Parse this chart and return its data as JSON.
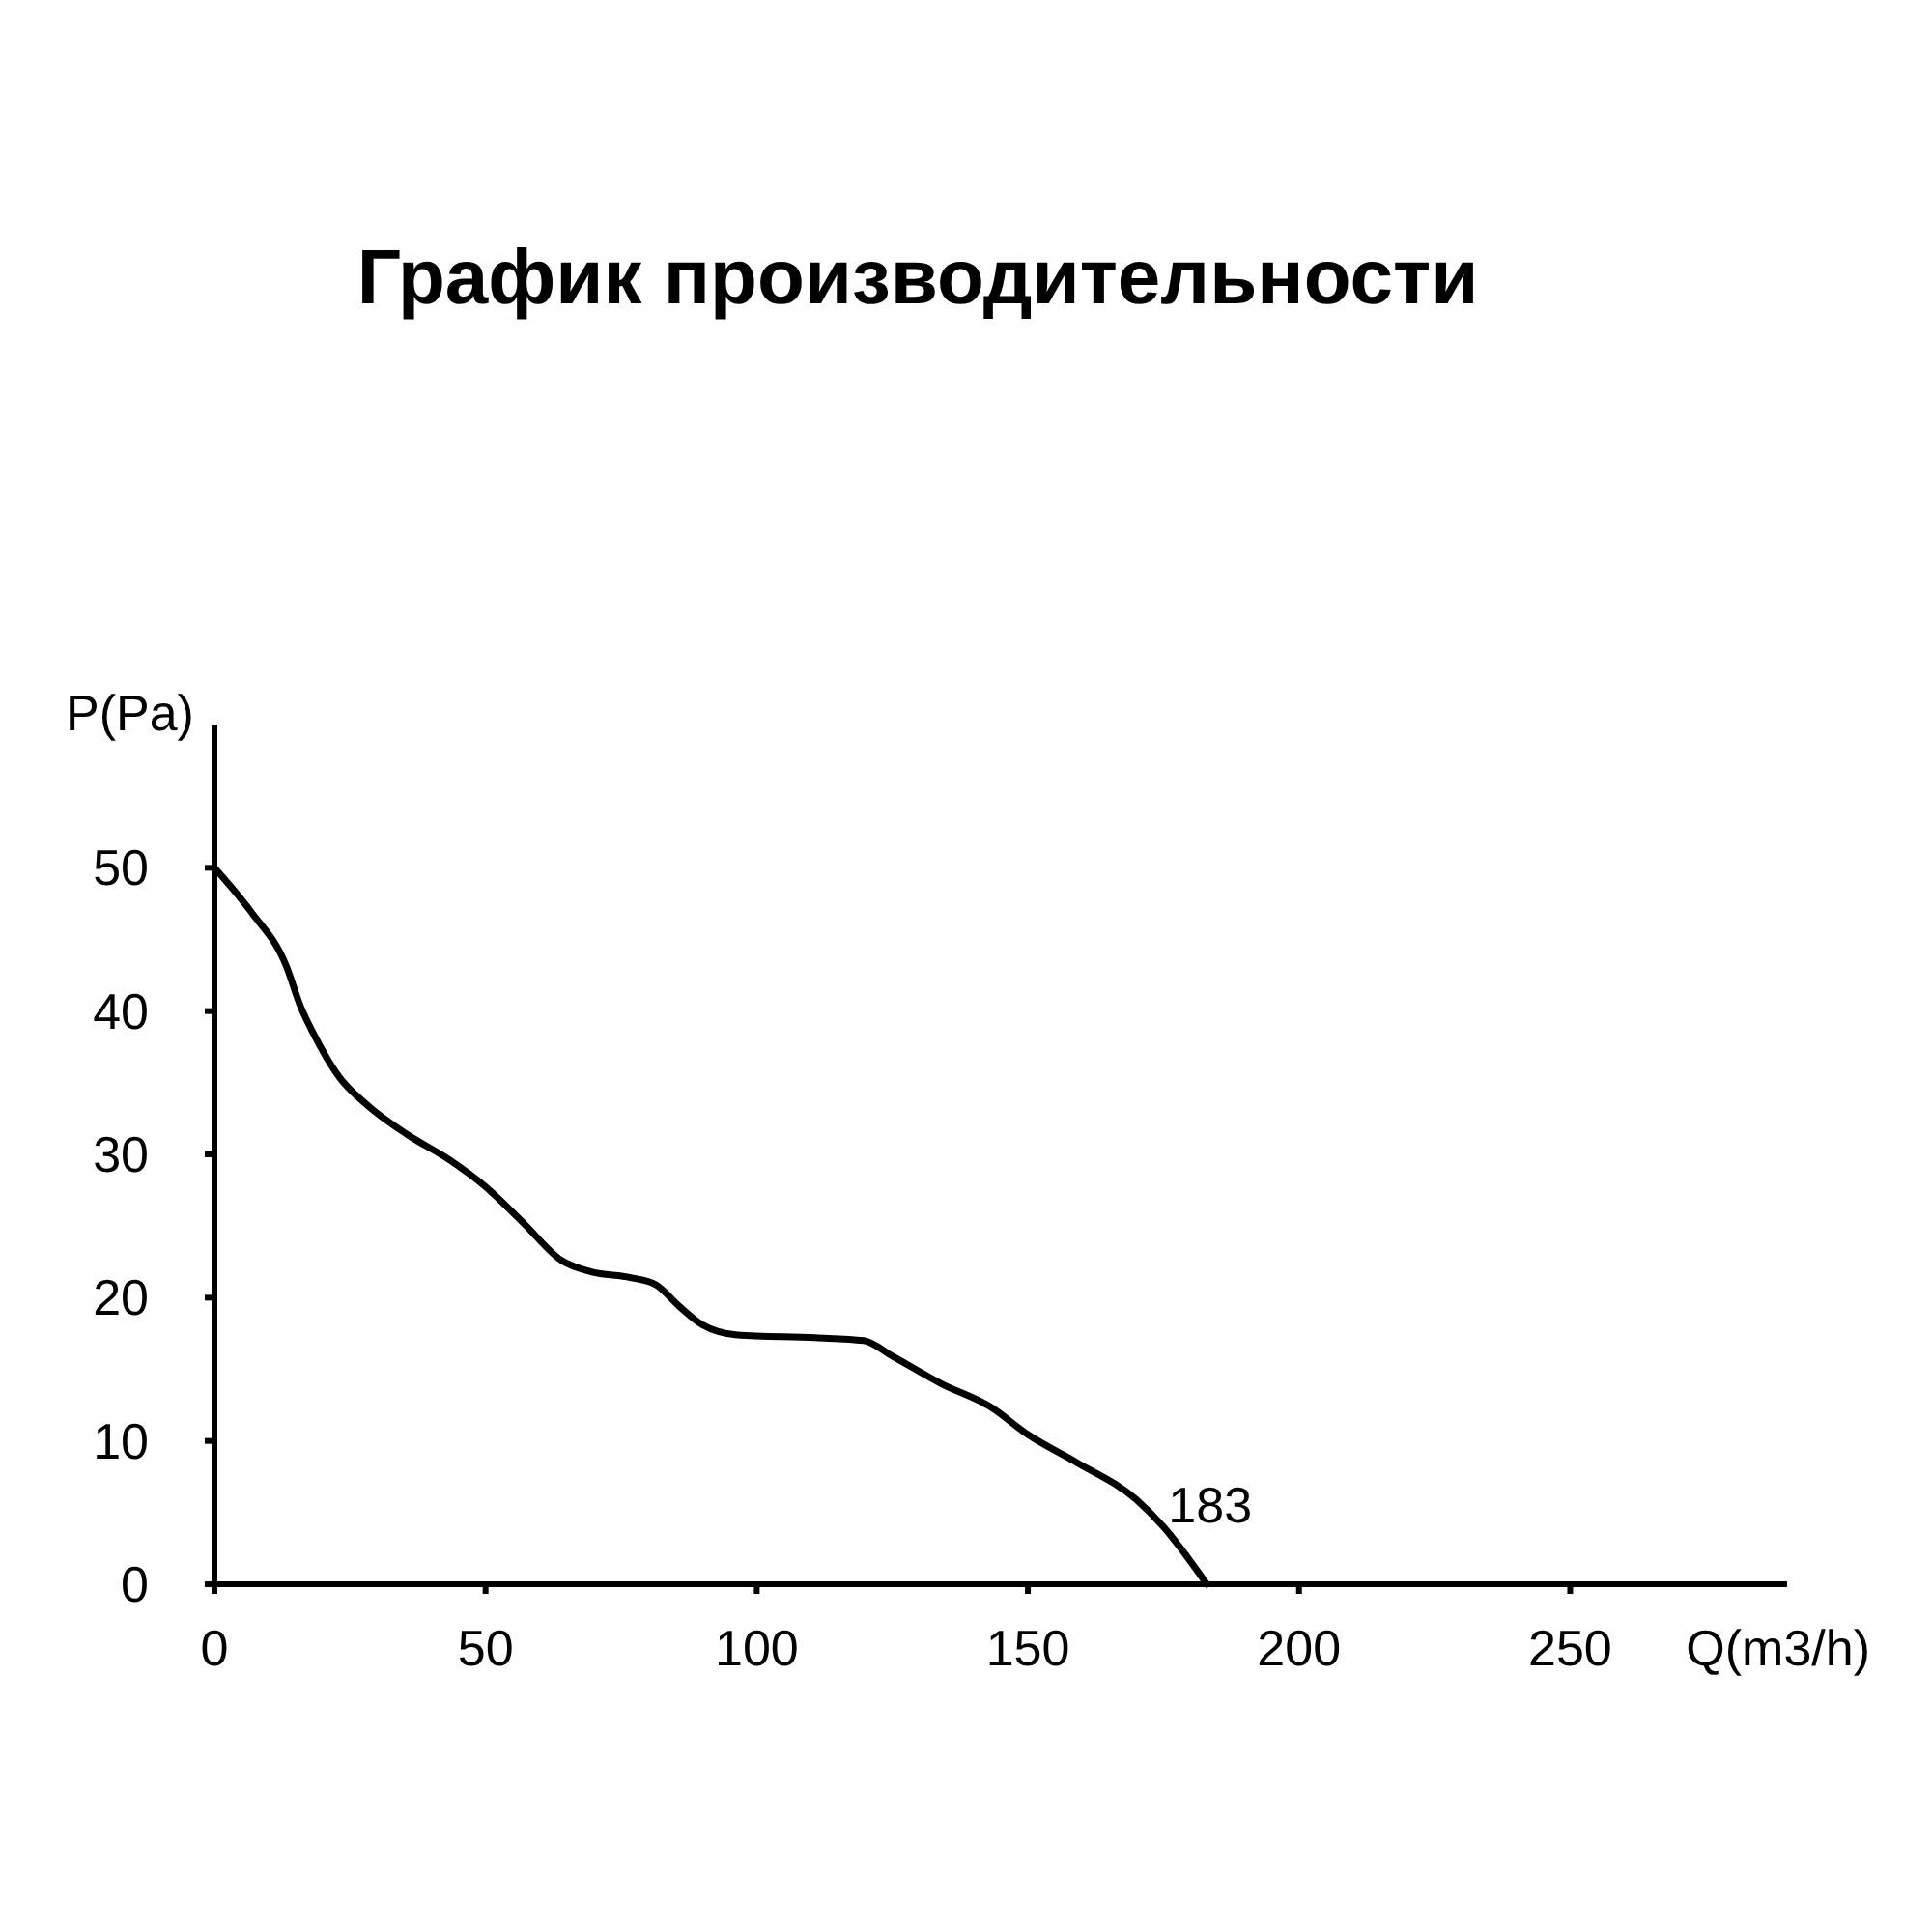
{
  "chart_data": {
    "type": "line",
    "title": "График производительности",
    "xlabel": "Q(m3/h)",
    "ylabel": "P(Pa)",
    "xlim": [
      0,
      290
    ],
    "ylim": [
      0,
      60
    ],
    "xticks": [
      0,
      50,
      100,
      150,
      200,
      250
    ],
    "yticks": [
      0,
      10,
      20,
      30,
      40,
      50
    ],
    "annotations": [
      {
        "text": "183",
        "x": 183,
        "y": 0
      }
    ],
    "series": [
      {
        "color": "#000000",
        "x": [
          0,
          6.8,
          13.3,
          15.8,
          18.3,
          23,
          28.3,
          35.5,
          43.4,
          49.8,
          57,
          64,
          69.5,
          76.7,
          81.4,
          85.7,
          90,
          96.4,
          110.8,
          119.7,
          125.1,
          134,
          143,
          150.2,
          159,
          170,
          175,
          183
        ],
        "values": [
          50,
          46.9,
          43.1,
          40.4,
          38.4,
          35.4,
          33.4,
          31.4,
          29.6,
          27.8,
          25.2,
          22.6,
          21.8,
          21.4,
          20.9,
          19.4,
          18.1,
          17.4,
          17.2,
          17.0,
          15.9,
          14.0,
          12.4,
          10.4,
          8.5,
          5.9,
          4.0,
          0
        ]
      }
    ]
  }
}
